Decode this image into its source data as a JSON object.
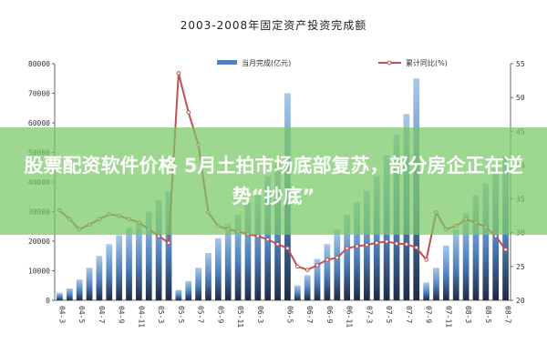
{
  "banner": {
    "headline": "股票配资软件价格 5月土拍市场底部复苏，部分房企正在逆势“抄底”"
  },
  "chart_data": {
    "type": "bar+line",
    "title": "2003-2008年固定资产投资完成额",
    "legend": [
      {
        "name": "当月完成(亿元)",
        "kind": "bar",
        "color": "#4f81bd"
      },
      {
        "name": "累计同比(%)",
        "kind": "line",
        "color": "#c0504d"
      }
    ],
    "legend_position": "top",
    "y_left": {
      "min": 0,
      "max": 80000,
      "ticks": [
        "0",
        "10000",
        "20000",
        "30000",
        "40000",
        "50000",
        "60000",
        "70000",
        "80000"
      ]
    },
    "y_right": {
      "min": 20,
      "max": 55,
      "ticks": [
        "20",
        "25",
        "30",
        "35",
        "40",
        "45",
        "50",
        "55"
      ]
    },
    "bars": [
      2500,
      4000,
      7000,
      11000,
      15000,
      19000,
      22000,
      24500,
      26500,
      30000,
      34000,
      37000,
      3500,
      6500,
      11000,
      16000,
      21000,
      26000,
      29000,
      33000,
      36000,
      42000,
      46000,
      70000,
      5000,
      8500,
      14000,
      19000,
      24000,
      29000,
      33000,
      37000,
      42000,
      49000,
      56000,
      63000,
      75000,
      6000,
      11000,
      18500,
      24000,
      29500,
      35500,
      39500,
      44500,
      48500
    ],
    "line": [
      33.3,
      32,
      30.5,
      31.2,
      32,
      32.7,
      32.5,
      32,
      31.5,
      30.5,
      29.5,
      28.5,
      53.6,
      47.8,
      43,
      33,
      31,
      30.5,
      30.2,
      29.8,
      29.5,
      29,
      28.3,
      27.7,
      25,
      24.5,
      25.2,
      26,
      26.3,
      27.7,
      28,
      28.2,
      28.5,
      28.7,
      28.4,
      28.3,
      27.8,
      26,
      33,
      30.5,
      31,
      32,
      31.5,
      30.8,
      29.5,
      27.5
    ],
    "x_labels": [
      "04-3",
      "04-5",
      "04-7",
      "04-9",
      "04-11",
      "05-3",
      "05-5",
      "05-7",
      "05-9",
      "05-11",
      "06-3",
      "06-5",
      "06-7",
      "06-9",
      "06-11",
      "07-3",
      "07-5",
      "07-7",
      "07-9",
      "07-11",
      "08-3",
      "08-5",
      "08-7"
    ]
  },
  "colors": {
    "bar": "#4f81bd",
    "bar_light": "#a8c8e8",
    "bar_dark": "#1f2a44",
    "line": "#c0504d",
    "banner": "#78c864"
  }
}
